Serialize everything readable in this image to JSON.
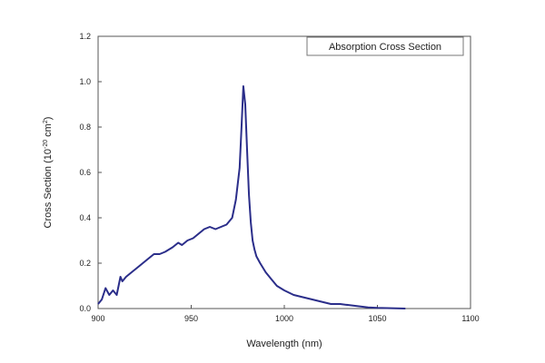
{
  "chart_data": {
    "type": "line",
    "title": "",
    "xlabel": "Wavelength (nm)",
    "ylabel": "Cross Section (10⁻²⁰ cm²)",
    "ylabel_base": "Cross Section (10",
    "ylabel_exp1": "-20",
    "ylabel_mid": " cm",
    "ylabel_exp2": "2",
    "ylabel_end": ")",
    "xlim": [
      900,
      1100
    ],
    "ylim": [
      0.0,
      1.2
    ],
    "xticks": [
      900,
      950,
      1000,
      1050,
      1100
    ],
    "xtick_labels": [
      "900",
      "950",
      "1000",
      "1050",
      "1100"
    ],
    "yticks": [
      0.0,
      0.2,
      0.4,
      0.6,
      0.8,
      1.0,
      1.2
    ],
    "ytick_labels": [
      "0.0",
      "0.2",
      "0.4",
      "0.6",
      "0.8",
      "1.0",
      "1.2"
    ],
    "grid": false,
    "legend_position": "top-right",
    "series": [
      {
        "name": "Absorption Cross Section",
        "color": "#2b2e8a",
        "x": [
          900,
          902,
          904,
          906,
          908,
          910,
          912,
          913,
          915,
          918,
          921,
          924,
          927,
          930,
          933,
          936,
          940,
          943,
          945,
          948,
          951,
          954,
          957,
          960,
          963,
          966,
          969,
          972,
          974,
          976,
          977,
          978,
          979,
          980,
          981,
          982,
          983,
          984,
          985,
          987,
          990,
          993,
          996,
          1000,
          1005,
          1010,
          1015,
          1020,
          1025,
          1030,
          1035,
          1040,
          1045,
          1050,
          1055,
          1060,
          1065
        ],
        "y": [
          0.02,
          0.04,
          0.09,
          0.06,
          0.08,
          0.06,
          0.14,
          0.12,
          0.14,
          0.16,
          0.18,
          0.2,
          0.22,
          0.24,
          0.24,
          0.25,
          0.27,
          0.29,
          0.28,
          0.3,
          0.31,
          0.33,
          0.35,
          0.36,
          0.35,
          0.36,
          0.37,
          0.4,
          0.48,
          0.62,
          0.8,
          0.98,
          0.9,
          0.7,
          0.5,
          0.38,
          0.3,
          0.26,
          0.23,
          0.2,
          0.16,
          0.13,
          0.1,
          0.08,
          0.06,
          0.05,
          0.04,
          0.03,
          0.02,
          0.02,
          0.015,
          0.01,
          0.005,
          0.003,
          0.002,
          0.001,
          0.0
        ]
      }
    ]
  }
}
